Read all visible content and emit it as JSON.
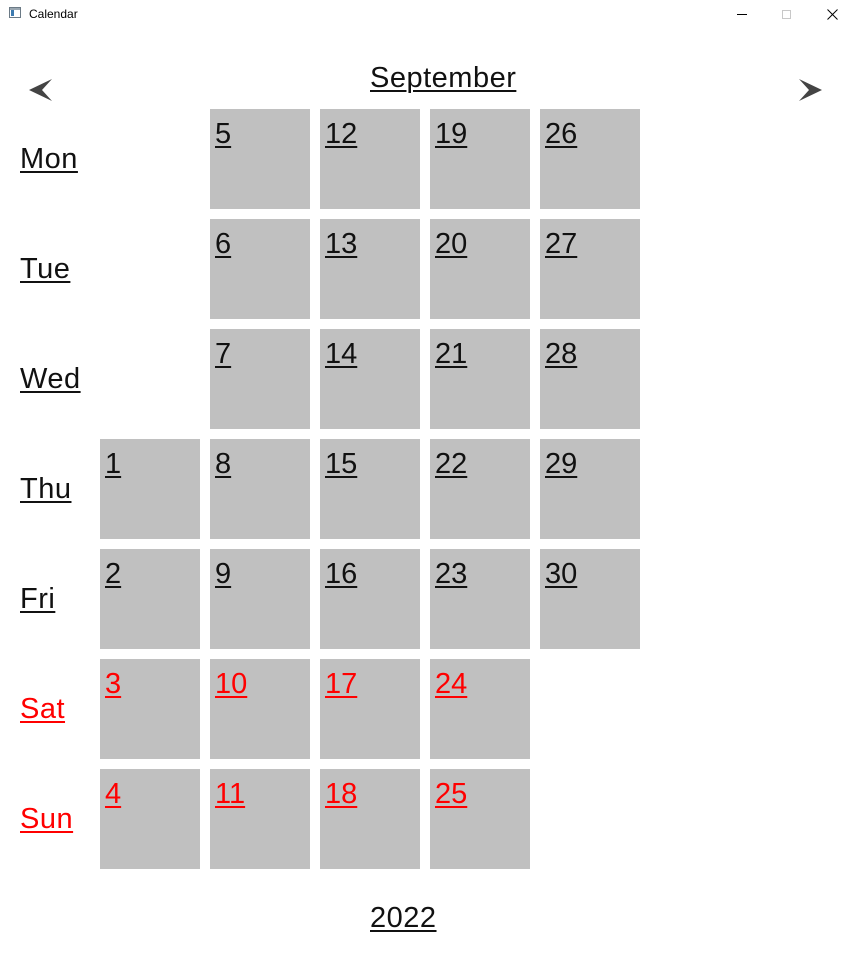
{
  "window": {
    "title": "Calendar",
    "buttons": {
      "minimize_glyph": "—",
      "maximize_glyph": "□",
      "close_glyph": "✕"
    }
  },
  "nav": {
    "prev_icon": "arrow-left-icon",
    "next_icon": "arrow-right-icon"
  },
  "calendar": {
    "month": "September",
    "year": "2022",
    "weekend_color": "#ff0000",
    "cell_color": "#c0c0c0",
    "weekdays": [
      {
        "label": "Mon",
        "weekend": false,
        "days": [
          null,
          "5",
          "12",
          "19",
          "26"
        ]
      },
      {
        "label": "Tue",
        "weekend": false,
        "days": [
          null,
          "6",
          "13",
          "20",
          "27"
        ]
      },
      {
        "label": "Wed",
        "weekend": false,
        "days": [
          null,
          "7",
          "14",
          "21",
          "28"
        ]
      },
      {
        "label": "Thu",
        "weekend": false,
        "days": [
          "1",
          "8",
          "15",
          "22",
          "29"
        ]
      },
      {
        "label": "Fri",
        "weekend": false,
        "days": [
          "2",
          "9",
          "16",
          "23",
          "30"
        ]
      },
      {
        "label": "Sat",
        "weekend": true,
        "days": [
          "3",
          "10",
          "17",
          "24",
          null
        ]
      },
      {
        "label": "Sun",
        "weekend": true,
        "days": [
          "4",
          "11",
          "18",
          "25",
          null
        ]
      }
    ]
  }
}
